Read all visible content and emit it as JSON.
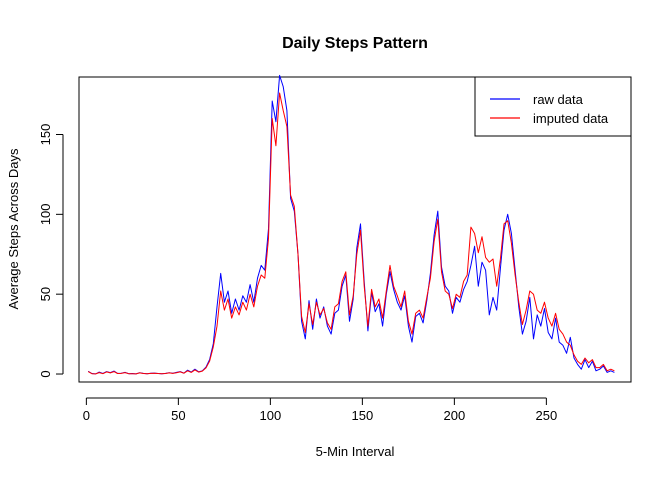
{
  "chart_data": {
    "type": "line",
    "title": "Daily Steps Pattern",
    "xlabel": "5-Min Interval",
    "ylabel": "Average Steps Across Days",
    "xlim": [
      -4,
      296
    ],
    "ylim": [
      -5,
      186
    ],
    "x_ticks": [
      {
        "value": 0,
        "label": "0"
      },
      {
        "value": 50,
        "label": "50"
      },
      {
        "value": 100,
        "label": "100"
      },
      {
        "value": 150,
        "label": "150"
      },
      {
        "value": 200,
        "label": "200"
      },
      {
        "value": 250,
        "label": "250"
      }
    ],
    "y_ticks": [
      {
        "value": 0,
        "label": "0"
      },
      {
        "value": 50,
        "label": "50"
      },
      {
        "value": 100,
        "label": "100"
      },
      {
        "value": 150,
        "label": "150"
      }
    ],
    "grid": false,
    "legend_position": "top-right",
    "series": [
      {
        "name": "raw data",
        "color": "#0000ff",
        "x": [
          1,
          3,
          5,
          7,
          9,
          11,
          13,
          15,
          17,
          19,
          21,
          23,
          25,
          27,
          29,
          31,
          33,
          35,
          37,
          39,
          41,
          43,
          45,
          47,
          49,
          51,
          53,
          55,
          57,
          59,
          61,
          63,
          65,
          67,
          69,
          71,
          73,
          75,
          77,
          79,
          81,
          83,
          85,
          87,
          89,
          91,
          93,
          95,
          97,
          99,
          101,
          103,
          105,
          107,
          109,
          111,
          113,
          115,
          117,
          119,
          121,
          123,
          125,
          127,
          129,
          131,
          133,
          135,
          137,
          139,
          141,
          143,
          145,
          147,
          149,
          151,
          153,
          155,
          157,
          159,
          161,
          163,
          165,
          167,
          169,
          171,
          173,
          175,
          177,
          179,
          181,
          183,
          185,
          187,
          189,
          191,
          193,
          195,
          197,
          199,
          201,
          203,
          205,
          207,
          209,
          211,
          213,
          215,
          217,
          219,
          221,
          223,
          225,
          227,
          229,
          231,
          233,
          235,
          237,
          239,
          241,
          243,
          245,
          247,
          249,
          251,
          253,
          255,
          257,
          259,
          261,
          263,
          265,
          267,
          269,
          271,
          273,
          275,
          277,
          279,
          281,
          283,
          285,
          287
        ],
        "y": [
          1.7,
          0.3,
          0.1,
          1.2,
          0.3,
          1.5,
          0.9,
          1.8,
          0.4,
          0.5,
          1.1,
          0.2,
          0.3,
          0.1,
          0.8,
          0.4,
          0.2,
          0.5,
          0.6,
          0.3,
          0.2,
          0.4,
          0.8,
          0.5,
          1.0,
          1.5,
          0.6,
          2.4,
          1.2,
          3.0,
          1.4,
          2.0,
          4.3,
          9.0,
          19,
          42,
          63,
          45,
          52,
          38,
          47,
          40,
          49,
          45,
          56,
          45,
          60,
          68,
          65,
          91,
          171,
          158,
          187,
          180,
          165,
          110,
          102,
          75,
          33,
          22,
          46,
          28,
          47,
          35,
          42,
          30,
          25,
          38,
          40,
          55,
          62,
          33,
          47,
          79,
          94,
          58,
          27,
          51,
          39,
          44,
          30,
          50,
          64,
          53,
          45,
          40,
          49,
          30,
          20,
          36,
          38,
          32,
          46,
          63,
          87,
          102,
          67,
          55,
          52,
          38,
          48,
          45,
          53,
          58,
          68,
          80,
          55,
          70,
          65,
          37,
          48,
          40,
          66,
          90,
          100,
          88,
          65,
          42,
          25,
          33,
          48,
          22,
          37,
          30,
          41,
          26,
          22,
          35,
          20,
          18,
          13,
          23,
          10,
          6,
          3,
          9,
          4,
          8,
          2,
          3,
          5,
          1,
          2,
          1
        ]
      },
      {
        "name": "imputed data",
        "color": "#ff0000",
        "x": [
          1,
          3,
          5,
          7,
          9,
          11,
          13,
          15,
          17,
          19,
          21,
          23,
          25,
          27,
          29,
          31,
          33,
          35,
          37,
          39,
          41,
          43,
          45,
          47,
          49,
          51,
          53,
          55,
          57,
          59,
          61,
          63,
          65,
          67,
          69,
          71,
          73,
          75,
          77,
          79,
          81,
          83,
          85,
          87,
          89,
          91,
          93,
          95,
          97,
          99,
          101,
          103,
          105,
          107,
          109,
          111,
          113,
          115,
          117,
          119,
          121,
          123,
          125,
          127,
          129,
          131,
          133,
          135,
          137,
          139,
          141,
          143,
          145,
          147,
          149,
          151,
          153,
          155,
          157,
          159,
          161,
          163,
          165,
          167,
          169,
          171,
          173,
          175,
          177,
          179,
          181,
          183,
          185,
          187,
          189,
          191,
          193,
          195,
          197,
          199,
          201,
          203,
          205,
          207,
          209,
          211,
          213,
          215,
          217,
          219,
          221,
          223,
          225,
          227,
          229,
          231,
          233,
          235,
          237,
          239,
          241,
          243,
          245,
          247,
          249,
          251,
          253,
          255,
          257,
          259,
          261,
          263,
          265,
          267,
          269,
          271,
          273,
          275,
          277,
          279,
          281,
          283,
          285,
          287
        ],
        "y": [
          1.5,
          0.2,
          0.1,
          0.9,
          0.2,
          1.3,
          0.7,
          1.5,
          0.3,
          0.4,
          0.9,
          0.2,
          0.2,
          0.1,
          0.7,
          0.3,
          0.2,
          0.4,
          0.5,
          0.3,
          0.2,
          0.3,
          0.7,
          0.4,
          0.8,
          1.3,
          0.5,
          2.0,
          1.0,
          2.6,
          1.2,
          1.8,
          3.8,
          8.0,
          17,
          30,
          52,
          40,
          47,
          35,
          42,
          37,
          45,
          40,
          50,
          42,
          55,
          62,
          60,
          85,
          160,
          143,
          176,
          165,
          155,
          112,
          105,
          75,
          36,
          26,
          44,
          31,
          45,
          37,
          41,
          32,
          28,
          42,
          44,
          58,
          64,
          37,
          49,
          75,
          90,
          55,
          30,
          53,
          42,
          47,
          35,
          52,
          68,
          55,
          49,
          42,
          52,
          33,
          25,
          38,
          40,
          35,
          48,
          60,
          83,
          97,
          64,
          52,
          50,
          41,
          50,
          48,
          58,
          62,
          92,
          88,
          76,
          86,
          73,
          70,
          72,
          55,
          72,
          94,
          96,
          82,
          62,
          45,
          31,
          40,
          52,
          50,
          40,
          38,
          45,
          35,
          30,
          38,
          28,
          25,
          20,
          18,
          12,
          8,
          6,
          10,
          7,
          9,
          4,
          4,
          6,
          2,
          3,
          2
        ]
      }
    ]
  }
}
